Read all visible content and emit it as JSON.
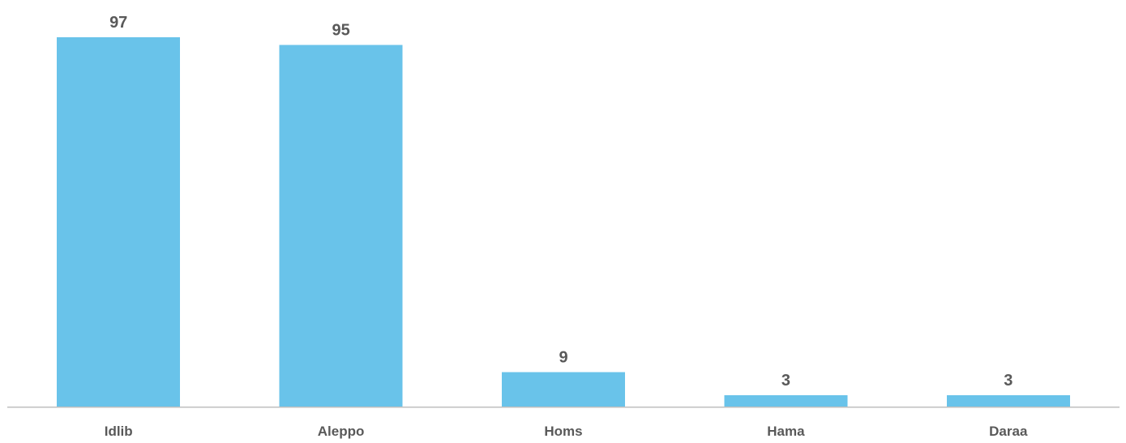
{
  "chart_data": {
    "type": "bar",
    "categories": [
      "Idlib",
      "Aleppo",
      "Homs",
      "Hama",
      "Daraa"
    ],
    "values": [
      97,
      95,
      9,
      3,
      3
    ],
    "data_labels": [
      "97",
      "95",
      "9",
      "3",
      "3"
    ],
    "title": "",
    "xlabel": "",
    "ylabel": "",
    "ylim": [
      0,
      97
    ],
    "grid": false,
    "legend": "none",
    "bar_color": "#69c3ea"
  }
}
